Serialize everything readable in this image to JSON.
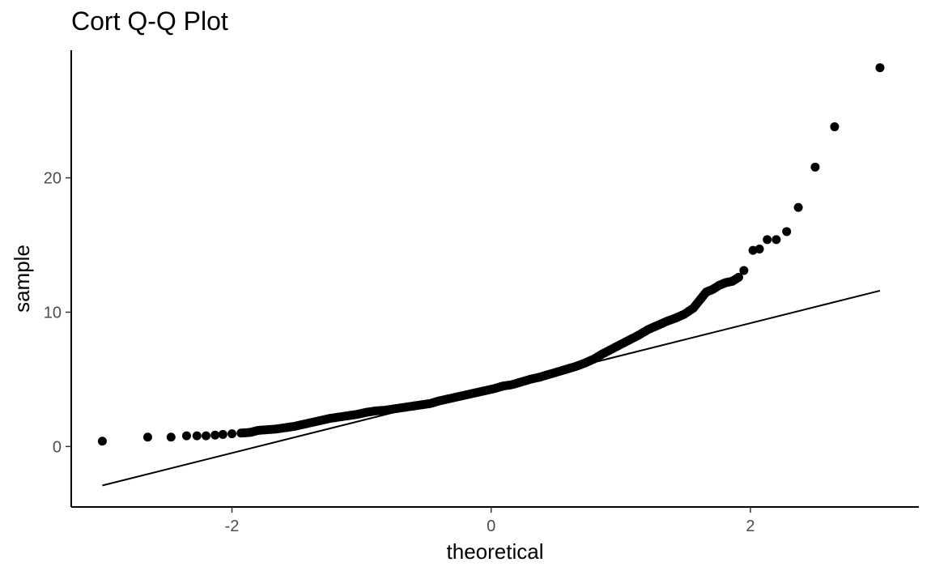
{
  "chart_data": {
    "type": "scatter",
    "title": "Cort Q-Q Plot",
    "xlabel": "theoretical",
    "ylabel": "sample",
    "xlim": [
      -3.24,
      3.3
    ],
    "ylim": [
      -4.5,
      29.5
    ],
    "x_ticks": [
      -2,
      0,
      2
    ],
    "x_tick_labels": [
      "-2",
      "0",
      "2"
    ],
    "y_ticks": [
      0,
      10,
      20
    ],
    "y_tick_labels": [
      "0",
      "10",
      "20"
    ],
    "grid": false,
    "reference_line": {
      "x": [
        -3.0,
        3.0
      ],
      "y": [
        -2.9,
        11.6
      ]
    },
    "points": {
      "x": [
        -3.0,
        -2.65,
        -2.47,
        -2.35,
        -2.27,
        -2.2,
        -2.13,
        -2.07,
        -2.0,
        -1.93,
        -1.86,
        -1.8,
        -1.73,
        -1.66,
        -1.59,
        -1.52,
        -1.45,
        -1.38,
        -1.31,
        -1.24,
        -1.17,
        -1.1,
        -1.03,
        -0.96,
        -0.89,
        -0.82,
        -0.75,
        -0.68,
        -0.61,
        -0.54,
        -0.47,
        -0.4,
        -0.33,
        -0.26,
        -0.19,
        -0.12,
        -0.05,
        0.02,
        0.09,
        0.16,
        0.23,
        0.3,
        0.37,
        0.44,
        0.51,
        0.58,
        0.65,
        0.72,
        0.79,
        0.86,
        0.93,
        1.0,
        1.07,
        1.14,
        1.21,
        1.28,
        1.35,
        1.42,
        1.49,
        1.56,
        1.61,
        1.66,
        1.71,
        1.76,
        1.81,
        1.86,
        1.91,
        1.95,
        2.02,
        2.07,
        2.13,
        2.2,
        2.28,
        2.37,
        2.5,
        2.65,
        3.0
      ],
      "y": [
        0.4,
        0.7,
        0.7,
        0.8,
        0.8,
        0.8,
        0.85,
        0.9,
        0.95,
        1.0,
        1.05,
        1.2,
        1.25,
        1.3,
        1.4,
        1.5,
        1.65,
        1.8,
        1.95,
        2.1,
        2.2,
        2.3,
        2.4,
        2.55,
        2.65,
        2.7,
        2.8,
        2.9,
        3.0,
        3.1,
        3.2,
        3.4,
        3.55,
        3.7,
        3.85,
        4.0,
        4.15,
        4.3,
        4.5,
        4.6,
        4.8,
        5.0,
        5.15,
        5.35,
        5.55,
        5.75,
        5.95,
        6.2,
        6.5,
        6.9,
        7.25,
        7.6,
        7.95,
        8.3,
        8.7,
        9.0,
        9.3,
        9.55,
        9.85,
        10.3,
        10.9,
        11.5,
        11.7,
        12.0,
        12.2,
        12.3,
        12.6,
        13.1,
        14.6,
        14.7,
        15.4,
        15.4,
        16.0,
        17.8,
        20.8,
        23.8,
        28.2
      ]
    }
  }
}
